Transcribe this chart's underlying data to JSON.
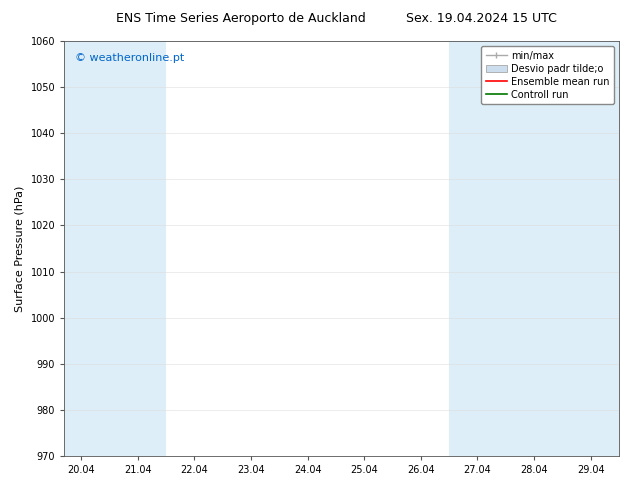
{
  "title_left": "ENS Time Series Aeroporto de Auckland",
  "title_right": "Sex. 19.04.2024 15 UTC",
  "ylabel": "Surface Pressure (hPa)",
  "ylim": [
    970,
    1060
  ],
  "yticks": [
    970,
    980,
    990,
    1000,
    1010,
    1020,
    1030,
    1040,
    1050,
    1060
  ],
  "xtick_labels": [
    "20.04",
    "21.04",
    "22.04",
    "23.04",
    "24.04",
    "25.04",
    "26.04",
    "27.04",
    "28.04",
    "29.04"
  ],
  "xtick_pos": [
    0,
    1,
    2,
    3,
    4,
    5,
    6,
    7,
    8,
    9
  ],
  "xlim_left": -0.3,
  "xlim_right": 9.5,
  "watermark": "© weatheronline.pt",
  "watermark_color": "#0066cc",
  "bg_color": "#ffffff",
  "plot_bg_color": "#ffffff",
  "shaded_bands": [
    {
      "x_start": -0.3,
      "x_end": 0.5
    },
    {
      "x_start": 0.5,
      "x_end": 1.5
    },
    {
      "x_start": 6.5,
      "x_end": 7.5
    },
    {
      "x_start": 7.5,
      "x_end": 8.5
    },
    {
      "x_start": 8.5,
      "x_end": 9.5
    }
  ],
  "shaded_color": "#ddeef8",
  "legend_minmax_color": "#aaaaaa",
  "legend_desvio_facecolor": "#ccdded",
  "legend_ensemble_color": "#ff0000",
  "legend_control_color": "#007700",
  "font_size_title": 9,
  "font_size_axis_label": 8,
  "font_size_tick": 7,
  "font_size_legend": 7,
  "font_size_watermark": 8
}
